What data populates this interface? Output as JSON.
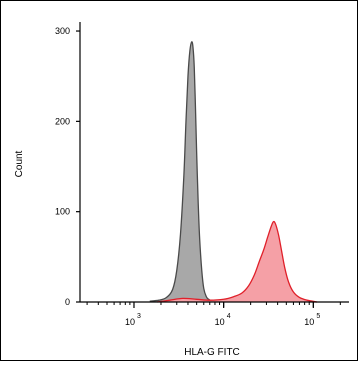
{
  "chart_data": {
    "type": "area",
    "title": "",
    "xlabel": "HLA-G FITC",
    "ylabel": "Count",
    "x_scale": "log",
    "xlim": [
      250,
      250000
    ],
    "ylim": [
      0,
      310
    ],
    "x_ticks": [
      {
        "value": 1000,
        "base": "10",
        "exp": "3"
      },
      {
        "value": 10000,
        "base": "10",
        "exp": "4"
      },
      {
        "value": 100000,
        "base": "10",
        "exp": "5"
      }
    ],
    "y_ticks": [
      {
        "value": 0,
        "label": "0"
      },
      {
        "value": 100,
        "label": "100"
      },
      {
        "value": 200,
        "label": "200"
      },
      {
        "value": 300,
        "label": "300"
      }
    ],
    "grid": false,
    "series": [
      {
        "fill": "#a8a8a8",
        "stroke": "#4a4a4a",
        "x": [
          1500,
          1900,
          2300,
          2700,
          3000,
          3300,
          3600,
          3800,
          4000,
          4200,
          4400,
          4550,
          4700,
          4850,
          5000,
          5200,
          5400,
          5700,
          6000,
          6400,
          6800,
          7500,
          8500
        ],
        "y": [
          1,
          2,
          5,
          14,
          35,
          75,
          140,
          200,
          250,
          278,
          288,
          282,
          260,
          215,
          165,
          110,
          70,
          35,
          15,
          6,
          3,
          1,
          0
        ]
      },
      {
        "fill": "#f5a0a6",
        "stroke": "#e0202a",
        "x": [
          1800,
          2500,
          3500,
          5000,
          7000,
          10000,
          13000,
          16000,
          19000,
          22000,
          25000,
          28000,
          31000,
          34000,
          36000,
          38000,
          41000,
          44000,
          48000,
          53000,
          60000,
          70000,
          85000,
          110000
        ],
        "y": [
          0,
          2,
          4,
          3,
          2,
          3,
          6,
          10,
          18,
          30,
          45,
          58,
          72,
          84,
          89,
          86,
          74,
          58,
          38,
          22,
          11,
          5,
          2,
          0
        ]
      }
    ]
  }
}
